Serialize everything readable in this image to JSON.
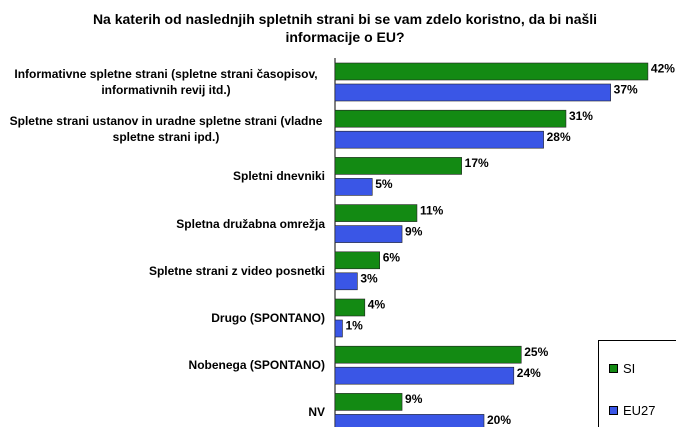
{
  "chart_data": {
    "type": "hbar",
    "title": "Na katerih od naslednjih spletnih strani bi se vam zdelo koristno, da bi našli informacije o EU?",
    "categories": [
      "Informativne spletne strani (spletne strani časopisov, informativnih revij itd.)",
      "Spletne strani ustanov in uradne spletne strani (vladne spletne strani ipd.)",
      "Spletni dnevniki",
      "Spletna družabna omrežja",
      "Spletne strani z video posnetki",
      "Drugo (SPONTANO)",
      "Nobenega (SPONTANO)",
      "NV"
    ],
    "series": [
      {
        "name": "SI",
        "color": "#138a13",
        "values": [
          42,
          31,
          17,
          11,
          6,
          4,
          25,
          9
        ],
        "value_labels": [
          "42%",
          "31%",
          "17%",
          "11%",
          "6%",
          "4%",
          "25%",
          "9%"
        ]
      },
      {
        "name": "EU27",
        "color": "#3a56e6",
        "values": [
          37,
          28,
          5,
          9,
          3,
          1,
          24,
          20
        ],
        "value_labels": [
          "37%",
          "28%",
          "5%",
          "9%",
          "3%",
          "1%",
          "24%",
          "20%"
        ]
      }
    ],
    "legend": "bottom-right"
  }
}
